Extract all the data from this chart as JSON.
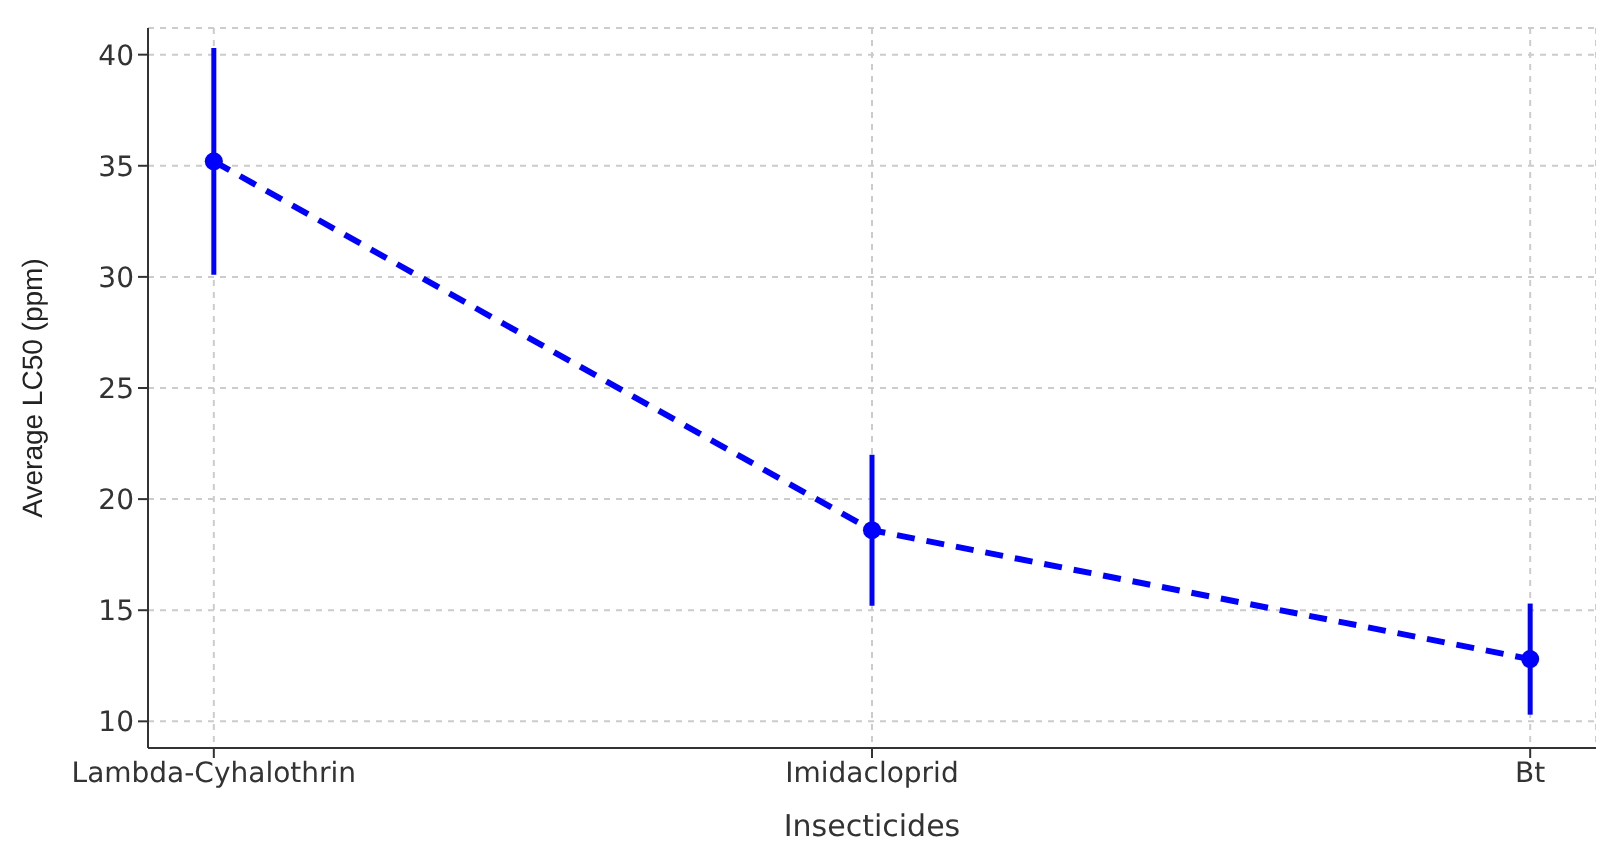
{
  "chart_data": {
    "type": "line",
    "xlabel": "Insecticides",
    "ylabel": "Average LC50 (ppm)",
    "categories": [
      "Lambda-Cyhalothrin",
      "Imidacloprid",
      "Bt"
    ],
    "values": [
      35.2,
      18.6,
      12.8
    ],
    "errors": [
      5.1,
      3.4,
      2.5
    ],
    "color": "#0000ff",
    "marker": "circle",
    "line_style": "dashed",
    "grid": true,
    "ylim": [
      8.8,
      41.2
    ],
    "yticks": [
      10,
      15,
      20,
      25,
      30,
      35,
      40
    ]
  }
}
